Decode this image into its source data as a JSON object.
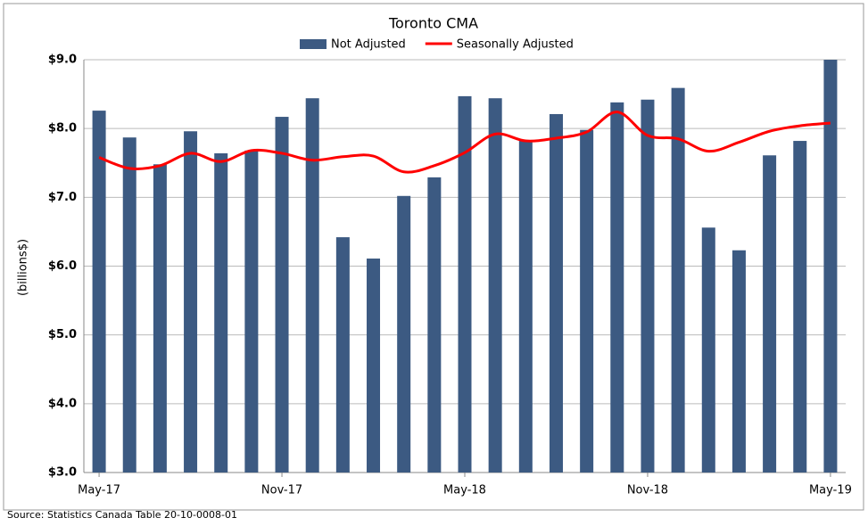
{
  "chart_data": {
    "type": "bar_line",
    "title": "Toronto CMA",
    "y_label": "(billions$)",
    "source": "Source: Statistics Canada Table 20-10-0008-01",
    "categories": [
      "May-17",
      null,
      null,
      null,
      null,
      null,
      "Nov-17",
      null,
      null,
      null,
      null,
      null,
      "May-18",
      null,
      null,
      null,
      null,
      null,
      "Nov-18",
      null,
      null,
      null,
      null,
      null,
      "May-19"
    ],
    "series": [
      {
        "name": "Not Adjusted",
        "color": "#3c5a82",
        "kind": "bar",
        "values": [
          8.26,
          7.87,
          7.48,
          7.96,
          7.64,
          7.68,
          8.17,
          8.44,
          6.42,
          6.11,
          7.02,
          7.29,
          8.47,
          8.44,
          7.82,
          8.21,
          7.98,
          8.38,
          8.42,
          8.59,
          6.56,
          6.23,
          7.61,
          7.82,
          9.0
        ]
      },
      {
        "name": "Seasonally Adjusted",
        "color": "#ff0000",
        "kind": "line",
        "values": [
          7.58,
          7.42,
          7.46,
          7.64,
          7.52,
          7.68,
          7.64,
          7.54,
          7.59,
          7.6,
          7.37,
          7.46,
          7.65,
          7.92,
          7.82,
          7.86,
          7.95,
          8.24,
          7.9,
          7.85,
          7.67,
          7.8,
          7.96,
          8.04,
          8.08
        ]
      }
    ],
    "ylim": [
      3,
      9
    ],
    "yticks": [
      {
        "value": 3,
        "label": "$3.0"
      },
      {
        "value": 4,
        "label": "$4.0"
      },
      {
        "value": 5,
        "label": "$5.0"
      },
      {
        "value": 6,
        "label": "$6.0"
      },
      {
        "value": 7,
        "label": "$7.0"
      },
      {
        "value": 8,
        "label": "$8.0"
      },
      {
        "value": 9,
        "label": "$9.0"
      }
    ],
    "grid": true
  }
}
